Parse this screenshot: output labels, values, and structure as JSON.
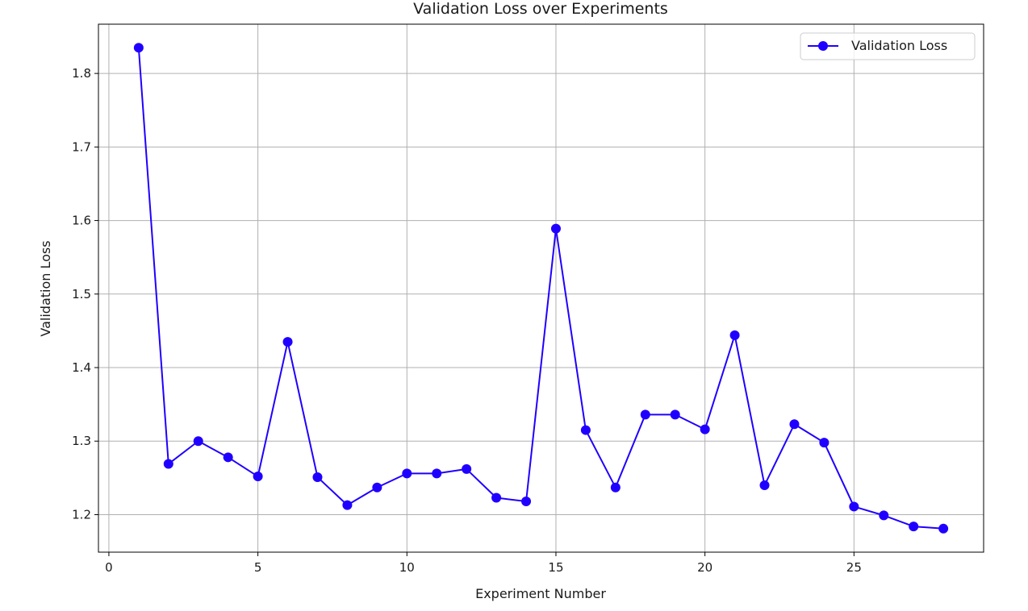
{
  "chart_data": {
    "type": "line",
    "title": "Validation Loss over Experiments",
    "xlabel": "Experiment Number",
    "ylabel": "Validation Loss",
    "xlim": [
      -0.35,
      29.35
    ],
    "ylim": [
      1.149,
      1.867
    ],
    "xticks": [
      0,
      5,
      10,
      15,
      20,
      25
    ],
    "yticks": [
      1.2,
      1.3,
      1.4,
      1.5,
      1.6,
      1.7,
      1.8
    ],
    "xtick_labels": [
      "0",
      "5",
      "10",
      "15",
      "20",
      "25"
    ],
    "ytick_labels": [
      "1.2",
      "1.3",
      "1.4",
      "1.5",
      "1.6",
      "1.7",
      "1.8"
    ],
    "grid": true,
    "legend_position": "top-right",
    "series": [
      {
        "name": "Validation Loss",
        "color": "#1f00ff",
        "marker": "circle",
        "x": [
          1,
          2,
          3,
          4,
          5,
          6,
          7,
          8,
          9,
          10,
          11,
          12,
          13,
          14,
          15,
          16,
          17,
          18,
          19,
          20,
          21,
          22,
          23,
          24,
          25,
          26,
          27,
          28
        ],
        "values": [
          1.835,
          1.269,
          1.3,
          1.278,
          1.252,
          1.435,
          1.251,
          1.213,
          1.237,
          1.256,
          1.256,
          1.262,
          1.223,
          1.218,
          1.589,
          1.315,
          1.237,
          1.336,
          1.336,
          1.316,
          1.444,
          1.24,
          1.323,
          1.298,
          1.211,
          1.199,
          1.184,
          1.181
        ]
      }
    ]
  }
}
